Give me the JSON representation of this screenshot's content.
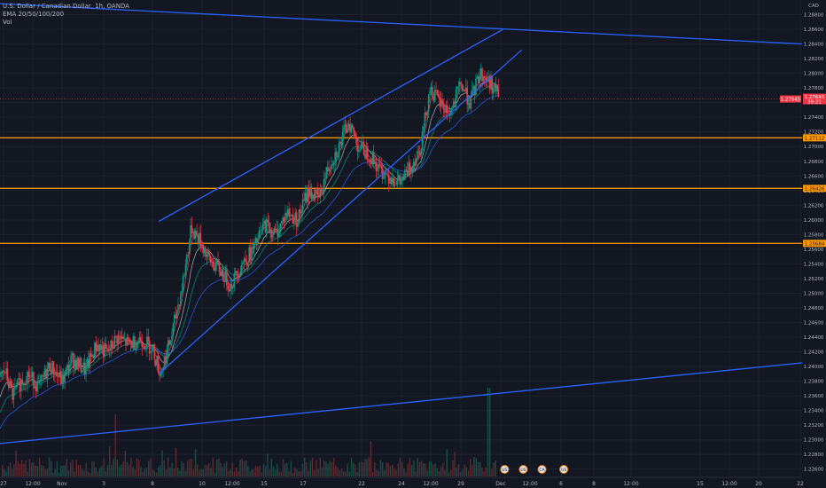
{
  "header": {
    "symbol_line": "U.S. Dollar / Canadian Dollar, 1h, OANDA",
    "ema_line": "EMA 20/50/100/200",
    "vol_line": "Vol"
  },
  "chart_data": {
    "type": "candlestick",
    "currency": "CAD",
    "ylim": [
      1.225,
      1.29
    ],
    "y_ticks": [
      "1.22600",
      "1.22800",
      "1.23000",
      "1.23200",
      "1.23400",
      "1.23600",
      "1.23800",
      "1.24000",
      "1.24200",
      "1.24400",
      "1.24600",
      "1.24800",
      "1.25000",
      "1.25200",
      "1.25400",
      "1.25600",
      "1.25800",
      "1.26000",
      "1.26200",
      "1.26400",
      "1.26600",
      "1.26800",
      "1.27000",
      "1.27200",
      "1.27400",
      "1.27600",
      "1.27800",
      "1.28000",
      "1.28200",
      "1.28400",
      "1.28600",
      "1.28800"
    ],
    "y_tick_values": [
      1.226,
      1.228,
      1.23,
      1.232,
      1.234,
      1.236,
      1.238,
      1.24,
      1.242,
      1.244,
      1.246,
      1.248,
      1.25,
      1.252,
      1.254,
      1.256,
      1.258,
      1.26,
      1.262,
      1.264,
      1.266,
      1.268,
      1.27,
      1.272,
      1.274,
      1.276,
      1.278,
      1.28,
      1.282,
      1.284,
      1.286,
      1.288
    ],
    "x_ticks": [
      "27",
      "12:00",
      "Nov",
      "3",
      "8",
      "10",
      "12:00",
      "15",
      "17",
      "22",
      "24",
      "12:00",
      "29",
      "Dec",
      "12:00",
      "6",
      "8",
      "12:00",
      "15",
      "12:00",
      "20",
      "22"
    ],
    "levels": [
      {
        "price": 1.2712,
        "label": "1.27112",
        "color": "#ff9800"
      },
      {
        "price": 1.2643,
        "label": "1.26426",
        "color": "#ff9800"
      },
      {
        "price": 1.2568,
        "label": "1.25684",
        "color": "#ff9800"
      }
    ],
    "current_price": {
      "price": 1.2765,
      "label": "1.27645",
      "sub_label": "39:21",
      "color": "#f23645"
    },
    "side_label": {
      "price": 1.2765,
      "label": "1.27645",
      "color": "#f23645"
    },
    "candle_path": [
      [
        0,
        1.2385
      ],
      [
        0.3,
        1.2395
      ],
      [
        0.8,
        1.236
      ],
      [
        1.2,
        1.2375
      ],
      [
        1.8,
        1.239
      ],
      [
        2.5,
        1.2372
      ],
      [
        3.2,
        1.2402
      ],
      [
        4.0,
        1.238
      ],
      [
        4.6,
        1.241
      ],
      [
        5.5,
        1.2395
      ],
      [
        6.2,
        1.243
      ],
      [
        6.9,
        1.2418
      ],
      [
        7.5,
        1.244
      ],
      [
        8.3,
        1.243
      ],
      [
        9.0,
        1.2438
      ],
      [
        9.8,
        1.2425
      ],
      [
        10.3,
        1.239
      ],
      [
        11.0,
        1.244
      ],
      [
        11.7,
        1.251
      ],
      [
        12.3,
        1.259
      ],
      [
        12.9,
        1.257
      ],
      [
        13.4,
        1.2545
      ],
      [
        14.2,
        1.253
      ],
      [
        14.8,
        1.251
      ],
      [
        15.5,
        1.254
      ],
      [
        16.3,
        1.256
      ],
      [
        17.0,
        1.2595
      ],
      [
        17.7,
        1.258
      ],
      [
        18.4,
        1.261
      ],
      [
        19.1,
        1.26
      ],
      [
        19.8,
        1.264
      ],
      [
        20.5,
        1.263
      ],
      [
        21.1,
        1.2675
      ],
      [
        21.8,
        1.27
      ],
      [
        22.4,
        1.2735
      ],
      [
        23.0,
        1.27
      ],
      [
        23.7,
        1.269
      ],
      [
        24.3,
        1.267
      ],
      [
        25.0,
        1.266
      ],
      [
        25.7,
        1.265
      ],
      [
        26.3,
        1.267
      ],
      [
        27.0,
        1.27
      ],
      [
        27.6,
        1.278
      ],
      [
        28.2,
        1.276
      ],
      [
        28.9,
        1.2745
      ],
      [
        29.6,
        1.2785
      ],
      [
        30.2,
        1.276
      ],
      [
        30.8,
        1.28
      ],
      [
        31.4,
        1.279
      ],
      [
        32.0,
        1.277
      ]
    ],
    "ema_series": [
      {
        "name": "EMA 20",
        "color": "#f23645"
      },
      {
        "name": "EMA 50",
        "color": "#b2b5be"
      },
      {
        "name": "EMA 100",
        "color": "#089981"
      },
      {
        "name": "EMA 200",
        "color": "#2962ff"
      }
    ],
    "trendlines": [
      {
        "name": "channel-upper",
        "from": [
          10.2,
          1.2598
        ],
        "to": [
          32.3,
          1.286
        ],
        "color": "#2962ff"
      },
      {
        "name": "channel-lower",
        "from": [
          10.2,
          1.239
        ],
        "to": [
          33.5,
          1.2832
        ],
        "color": "#2962ff"
      },
      {
        "name": "long-upper",
        "from": [
          0,
          1.2895
        ],
        "to": [
          51.5,
          1.284
        ],
        "color": "#2962ff"
      },
      {
        "name": "long-lower",
        "from": [
          0,
          1.2295
        ],
        "to": [
          51.5,
          1.2405
        ],
        "color": "#2962ff"
      }
    ],
    "event_icons": [
      {
        "x": 32.4,
        "label": "US"
      },
      {
        "x": 33.6,
        "label": "US"
      },
      {
        "x": 34.8,
        "label": "CA"
      },
      {
        "x": 36.2,
        "label": "US"
      }
    ]
  }
}
